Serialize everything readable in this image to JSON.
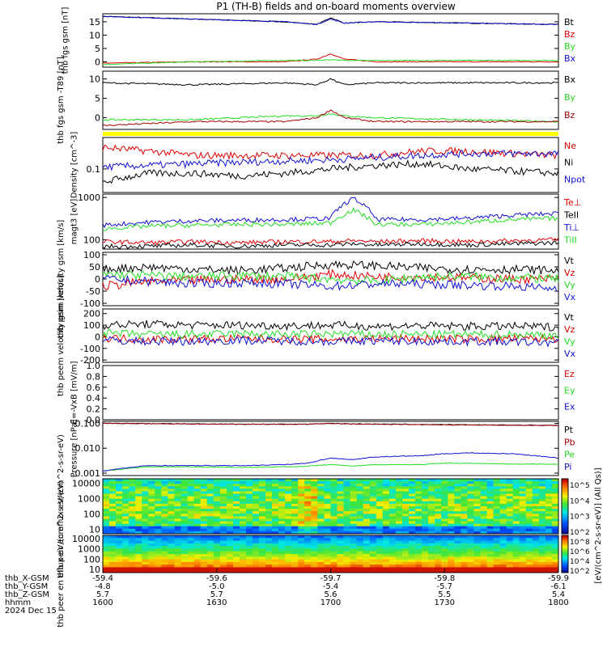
{
  "title": "P1 (TH-B) fields and on-board moments overview",
  "colors": {
    "black": "#000000",
    "red": "#e00000",
    "green": "#22dd22",
    "blue": "#1010d0",
    "darkred": "#a00000",
    "navy": "#00008b",
    "yellow": "#ffff00"
  },
  "footer": {
    "labels": [
      "thb_X-GSM",
      "thb_Y-GSM",
      "thb_Z-GSM",
      "hhmm",
      "2024 Dec 15"
    ],
    "rows": [
      [
        "-59.4",
        "-59.6",
        "-59.7",
        "-59.8",
        "-59.9"
      ],
      [
        "-4.8",
        "-5.0",
        "-5.4",
        "-5.7",
        "-6.1"
      ],
      [
        "5.7",
        "5.7",
        "5.6",
        "5.5",
        "5.4"
      ],
      [
        "1600",
        "1630",
        "1700",
        "1730",
        "1800"
      ]
    ]
  },
  "colorbar": {
    "label": "[eV/(cm^2-s-sr-eV)] (All Qs)]",
    "upper_ticks": [
      "10^5",
      "10^4",
      "10^3",
      "10^2"
    ],
    "lower_ticks": [
      "10^8",
      "10^6",
      "10^4",
      "10^2"
    ]
  },
  "chart_data": [
    {
      "type": "line",
      "panel": "fgs-gsm",
      "ylabel": "thb fgs gsm [nT]",
      "x": [
        0,
        0.2,
        0.4,
        0.47,
        0.5,
        0.53,
        0.6,
        0.8,
        1.0
      ],
      "yticks": [
        "15",
        "10",
        "5",
        "0"
      ],
      "ylim": [
        -2,
        18
      ],
      "series": [
        {
          "name": "Bt",
          "color": "black",
          "values": [
            17,
            16,
            15,
            14,
            16.5,
            14.5,
            15,
            14.5,
            14
          ]
        },
        {
          "name": "Bz",
          "color": "red",
          "values": [
            -0.5,
            0,
            0,
            1,
            3,
            1,
            0,
            0,
            0
          ]
        },
        {
          "name": "By",
          "color": "green",
          "values": [
            -1,
            0,
            0.5,
            0.5,
            0.8,
            0.5,
            0.5,
            0.5,
            0.5
          ]
        },
        {
          "name": "Bx",
          "color": "blue",
          "values": [
            17,
            16,
            15,
            14,
            16,
            14.5,
            15,
            14.5,
            14
          ]
        }
      ]
    },
    {
      "type": "line",
      "panel": "fgs-gsm-minus-t89",
      "ylabel": "thb fgs gsm -T89 [nT]",
      "x": [
        0,
        0.2,
        0.4,
        0.47,
        0.5,
        0.53,
        0.6,
        0.8,
        1.0
      ],
      "yticks": [
        "10",
        "5",
        "0"
      ],
      "ylim": [
        -3,
        12
      ],
      "series": [
        {
          "name": "Bx",
          "color": "black",
          "values": [
            9,
            8.5,
            9,
            8.5,
            10,
            8.5,
            9,
            9,
            9
          ]
        },
        {
          "name": "By",
          "color": "green",
          "values": [
            -0.5,
            -0.5,
            0.5,
            0.5,
            1,
            0.5,
            0,
            -0.5,
            -1
          ]
        },
        {
          "name": "Bz",
          "color": "darkred",
          "values": [
            -2,
            -1,
            -1,
            0,
            2,
            0,
            -1,
            -1,
            -1
          ]
        }
      ]
    },
    {
      "type": "line",
      "panel": "density",
      "ylabel": "Density [cm^-3]",
      "yscale": "log",
      "x": [
        0,
        0.1,
        0.2,
        0.3,
        0.4,
        0.5,
        0.6,
        0.7,
        0.8,
        0.9,
        1.0
      ],
      "yticks": [
        "0.1"
      ],
      "ylim": [
        0.03,
        0.5
      ],
      "series": [
        {
          "name": "Ne",
          "color": "red",
          "values": [
            0.3,
            0.25,
            0.2,
            0.2,
            0.2,
            0.2,
            0.2,
            0.25,
            0.25,
            0.22,
            0.2
          ]
        },
        {
          "name": "Ni",
          "color": "black",
          "values": [
            0.05,
            0.08,
            0.08,
            0.07,
            0.08,
            0.1,
            0.12,
            0.13,
            0.1,
            0.09,
            0.08
          ]
        },
        {
          "name": "Npot",
          "color": "blue",
          "values": [
            0.11,
            0.12,
            0.13,
            0.14,
            0.15,
            0.16,
            0.18,
            0.2,
            0.22,
            0.22,
            0.22
          ]
        }
      ]
    },
    {
      "type": "line",
      "panel": "temperature",
      "ylabel": "magt3 [eV]",
      "yscale": "log",
      "x": [
        0,
        0.1,
        0.2,
        0.3,
        0.4,
        0.5,
        0.55,
        0.6,
        0.7,
        0.8,
        0.9,
        1.0
      ],
      "yticks": [
        "1000",
        "100"
      ],
      "ylim": [
        60,
        1200
      ],
      "series": [
        {
          "name": "Te⊥",
          "color": "red",
          "values": [
            90,
            85,
            90,
            85,
            90,
            90,
            95,
            90,
            95,
            90,
            95,
            100
          ]
        },
        {
          "name": "TeII",
          "color": "black",
          "values": [
            70,
            70,
            75,
            70,
            75,
            75,
            80,
            75,
            80,
            75,
            80,
            85
          ]
        },
        {
          "name": "Ti⊥",
          "color": "blue",
          "values": [
            220,
            260,
            280,
            290,
            300,
            320,
            950,
            300,
            300,
            320,
            380,
            420
          ]
        },
        {
          "name": "TiII",
          "color": "green",
          "values": [
            180,
            210,
            220,
            230,
            230,
            250,
            500,
            230,
            230,
            260,
            300,
            320
          ]
        }
      ]
    },
    {
      "type": "line",
      "panel": "peim-velocity",
      "ylabel": "thb peim velocity gsm [km/s]",
      "x": [
        0,
        0.1,
        0.2,
        0.3,
        0.4,
        0.5,
        0.6,
        0.7,
        0.8,
        0.9,
        1.0
      ],
      "yticks": [
        "100",
        "50",
        "0",
        "-50",
        "-100"
      ],
      "ylim": [
        -110,
        110
      ],
      "series": [
        {
          "name": "Vt",
          "color": "black",
          "values": [
            40,
            50,
            40,
            35,
            45,
            60,
            55,
            45,
            40,
            40,
            35
          ]
        },
        {
          "name": "Vz",
          "color": "red",
          "values": [
            -30,
            -10,
            -5,
            0,
            0,
            20,
            10,
            10,
            5,
            0,
            0
          ]
        },
        {
          "name": "Vy",
          "color": "green",
          "values": [
            20,
            15,
            10,
            15,
            10,
            0,
            -10,
            10,
            10,
            5,
            0
          ]
        },
        {
          "name": "Vx",
          "color": "blue",
          "values": [
            0,
            -10,
            -20,
            -15,
            -20,
            -30,
            -20,
            -20,
            -25,
            -30,
            -40
          ]
        }
      ]
    },
    {
      "type": "line",
      "panel": "peem-velocity",
      "ylabel": "thb peem velocity gsm [km/s]",
      "x": [
        0,
        0.1,
        0.2,
        0.3,
        0.4,
        0.5,
        0.6,
        0.7,
        0.8,
        0.9,
        1.0
      ],
      "yticks": [
        "200",
        "100",
        "0",
        "-100",
        "-200"
      ],
      "ylim": [
        -220,
        240
      ],
      "series": [
        {
          "name": "Vt",
          "color": "black",
          "values": [
            100,
            110,
            100,
            100,
            95,
            100,
            90,
            95,
            90,
            90,
            85
          ]
        },
        {
          "name": "Vz",
          "color": "red",
          "values": [
            -10,
            -20,
            -20,
            -15,
            -20,
            -20,
            -15,
            -15,
            -20,
            -15,
            -15
          ]
        },
        {
          "name": "Vy",
          "color": "green",
          "values": [
            30,
            20,
            20,
            25,
            20,
            25,
            20,
            20,
            20,
            20,
            15
          ]
        },
        {
          "name": "Vx",
          "color": "blue",
          "values": [
            -30,
            -40,
            -40,
            -30,
            -35,
            -40,
            -35,
            -40,
            -40,
            -45,
            -50
          ]
        }
      ]
    },
    {
      "type": "line",
      "panel": "e-field",
      "ylabel": "E=-VxB [mV/m]",
      "x": [],
      "yticks": [
        "1.0",
        "0.8",
        "0.6",
        "0.4",
        "0.2",
        "0.0"
      ],
      "ylim": [
        0,
        1
      ],
      "series": [
        {
          "name": "Ez",
          "color": "red",
          "values": []
        },
        {
          "name": "Ey",
          "color": "green",
          "values": []
        },
        {
          "name": "Ex",
          "color": "blue",
          "values": []
        }
      ]
    },
    {
      "type": "line",
      "panel": "pressure",
      "ylabel": "Pressure [nPa]",
      "yscale": "log",
      "x": [
        0,
        0.1,
        0.2,
        0.3,
        0.4,
        0.45,
        0.5,
        0.55,
        0.6,
        0.7,
        0.75,
        0.8,
        0.9,
        1.0
      ],
      "yticks": [
        "0.100",
        "0.010",
        "0.001"
      ],
      "ylim": [
        0.0008,
        0.12
      ],
      "series": [
        {
          "name": "Pt",
          "color": "black",
          "values": [
            0.1,
            0.098,
            0.095,
            0.093,
            0.092,
            0.093,
            0.1,
            0.095,
            0.093,
            0.09,
            0.088,
            0.087,
            0.085,
            0.083
          ]
        },
        {
          "name": "Pb",
          "color": "darkred",
          "values": [
            0.1,
            0.097,
            0.094,
            0.092,
            0.091,
            0.092,
            0.099,
            0.094,
            0.092,
            0.089,
            0.087,
            0.086,
            0.084,
            0.082
          ]
        },
        {
          "name": "Pe",
          "color": "green",
          "values": [
            0.0012,
            0.0018,
            0.0018,
            0.0017,
            0.0018,
            0.0019,
            0.0022,
            0.0019,
            0.0022,
            0.0022,
            0.0025,
            0.0025,
            0.0023,
            0.0023
          ]
        },
        {
          "name": "Pi",
          "color": "blue",
          "values": [
            0.0012,
            0.002,
            0.002,
            0.002,
            0.0022,
            0.0025,
            0.004,
            0.0035,
            0.0045,
            0.005,
            0.006,
            0.0065,
            0.006,
            0.004
          ]
        }
      ]
    },
    {
      "type": "heatmap",
      "panel": "peir-eflux",
      "ylabel": "thb peir en eflux eV/(cm^2-s-sr-eV)",
      "yscale": "log",
      "yticks": [
        "10000",
        "1000",
        "100",
        "10"
      ],
      "ylim": [
        5,
        20000
      ]
    },
    {
      "type": "heatmap",
      "panel": "peer-eflux",
      "ylabel": "thb peer en eflux eV/(cm^2-s-sr-eV)",
      "yscale": "log",
      "yticks": [
        "10000",
        "1000",
        "100",
        "10"
      ],
      "ylim": [
        5,
        20000
      ]
    }
  ]
}
